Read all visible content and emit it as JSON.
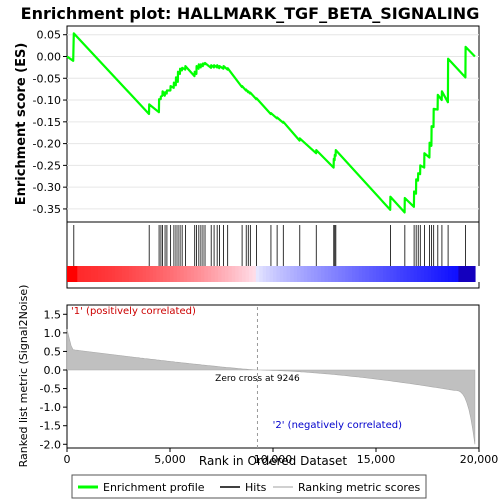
{
  "chart_data": {
    "type": "line",
    "title": "Enrichment plot: HALLMARK_TGF_BETA_SIGNALING",
    "xlabel": "Rank in Ordered Dataset",
    "es_ylabel": "Enrichment score (ES)",
    "metric_ylabel": "Ranked list metric (Signal2Noise)",
    "xlim": [
      0,
      20000
    ],
    "es_ylim": [
      -0.38,
      0.07
    ],
    "metric_ylim": [
      -2.1,
      1.75
    ],
    "x_ticks": [
      0,
      5000,
      10000,
      15000,
      20000
    ],
    "x_tick_labels": [
      "0",
      "5,000",
      "10,000",
      "15,000",
      "20,000"
    ],
    "es_ticks": [
      0.05,
      0.0,
      -0.05,
      -0.1,
      -0.15,
      -0.2,
      -0.25,
      -0.3,
      -0.35
    ],
    "es_tick_labels": [
      "0.05",
      "0.00",
      "-0.05",
      "-0.10",
      "-0.15",
      "-0.20",
      "-0.25",
      "-0.30",
      "-0.35"
    ],
    "metric_ticks": [
      1.5,
      1.0,
      0.5,
      0.0,
      -0.5,
      -1.0,
      -1.5,
      -2.0
    ],
    "metric_tick_labels": [
      "1.5",
      "1.0",
      "0.5",
      "0.0",
      "-0.5",
      "-1.0",
      "-1.5",
      "-2.0"
    ],
    "zero_cross": 9246,
    "zero_cross_label": "Zero cross at 9246",
    "pos_label": "'1' (positively correlated)",
    "neg_label": "'2' (negatively correlated)",
    "legend": [
      "Enrichment profile",
      "Hits",
      "Ranking metric scores"
    ],
    "colors": {
      "es_line": "#00ff00",
      "hits": "#000000",
      "metric": "#c0c0c0",
      "zero_line": "#999999",
      "pos_label": "#cc0000",
      "neg_label": "#0000cc"
    },
    "hits": [
      330,
      3990,
      4470,
      4560,
      4640,
      4760,
      4850,
      5030,
      5190,
      5290,
      5390,
      5490,
      5590,
      5750,
      6200,
      6290,
      6400,
      6500,
      6600,
      6700,
      7000,
      7140,
      7290,
      7400,
      7600,
      7800,
      8500,
      8700,
      8800,
      8900,
      9200,
      9900,
      10200,
      10500,
      11300,
      12100,
      12950,
      13000,
      13050,
      15700,
      16400,
      16850,
      16950,
      17050,
      17150,
      17350,
      17600,
      17700,
      17800,
      18000,
      18200,
      18500,
      19350
    ],
    "es_points": [
      [
        0,
        0.0
      ],
      [
        300,
        -0.01
      ],
      [
        330,
        0.053
      ],
      [
        3980,
        -0.132
      ],
      [
        3990,
        -0.11
      ],
      [
        4460,
        -0.128
      ],
      [
        4470,
        -0.098
      ],
      [
        4550,
        -0.098
      ],
      [
        4560,
        -0.092
      ],
      [
        4630,
        -0.09
      ],
      [
        4640,
        -0.08
      ],
      [
        4750,
        -0.09
      ],
      [
        4760,
        -0.082
      ],
      [
        4840,
        -0.085
      ],
      [
        4850,
        -0.078
      ],
      [
        5020,
        -0.078
      ],
      [
        5030,
        -0.068
      ],
      [
        5180,
        -0.072
      ],
      [
        5190,
        -0.06
      ],
      [
        5280,
        -0.066
      ],
      [
        5290,
        -0.048
      ],
      [
        5380,
        -0.058
      ],
      [
        5390,
        -0.035
      ],
      [
        5480,
        -0.04
      ],
      [
        5490,
        -0.028
      ],
      [
        5580,
        -0.032
      ],
      [
        5590,
        -0.026
      ],
      [
        5740,
        -0.03
      ],
      [
        5750,
        -0.022
      ],
      [
        6190,
        -0.045
      ],
      [
        6200,
        -0.035
      ],
      [
        6280,
        -0.04
      ],
      [
        6290,
        -0.022
      ],
      [
        6390,
        -0.028
      ],
      [
        6400,
        -0.018
      ],
      [
        6490,
        -0.025
      ],
      [
        6500,
        -0.018
      ],
      [
        6590,
        -0.022
      ],
      [
        6600,
        -0.016
      ],
      [
        6690,
        -0.018
      ],
      [
        6700,
        -0.015
      ],
      [
        6990,
        -0.026
      ],
      [
        7000,
        -0.02
      ],
      [
        7130,
        -0.025
      ],
      [
        7140,
        -0.02
      ],
      [
        7280,
        -0.025
      ],
      [
        7290,
        -0.02
      ],
      [
        7390,
        -0.027
      ],
      [
        7400,
        -0.022
      ],
      [
        7590,
        -0.028
      ],
      [
        7600,
        -0.022
      ],
      [
        7790,
        -0.03
      ],
      [
        7800,
        -0.027
      ],
      [
        8490,
        -0.07
      ],
      [
        8500,
        -0.068
      ],
      [
        8690,
        -0.078
      ],
      [
        8700,
        -0.076
      ],
      [
        8790,
        -0.082
      ],
      [
        8800,
        -0.08
      ],
      [
        8890,
        -0.085
      ],
      [
        8900,
        -0.083
      ],
      [
        9190,
        -0.098
      ],
      [
        9200,
        -0.096
      ],
      [
        9890,
        -0.132
      ],
      [
        9900,
        -0.13
      ],
      [
        10190,
        -0.142
      ],
      [
        10200,
        -0.14
      ],
      [
        10490,
        -0.152
      ],
      [
        10500,
        -0.15
      ],
      [
        11290,
        -0.193
      ],
      [
        11300,
        -0.188
      ],
      [
        12090,
        -0.222
      ],
      [
        12100,
        -0.215
      ],
      [
        12940,
        -0.255
      ],
      [
        12950,
        -0.235
      ],
      [
        12990,
        -0.238
      ],
      [
        13000,
        -0.226
      ],
      [
        13040,
        -0.228
      ],
      [
        13050,
        -0.215
      ],
      [
        15690,
        -0.352
      ],
      [
        15700,
        -0.322
      ],
      [
        16390,
        -0.358
      ],
      [
        16400,
        -0.325
      ],
      [
        16840,
        -0.345
      ],
      [
        16850,
        -0.31
      ],
      [
        16940,
        -0.315
      ],
      [
        16950,
        -0.282
      ],
      [
        17040,
        -0.285
      ],
      [
        17050,
        -0.268
      ],
      [
        17140,
        -0.27
      ],
      [
        17150,
        -0.25
      ],
      [
        17340,
        -0.255
      ],
      [
        17350,
        -0.222
      ],
      [
        17590,
        -0.232
      ],
      [
        17600,
        -0.198
      ],
      [
        17690,
        -0.205
      ],
      [
        17700,
        -0.16
      ],
      [
        17790,
        -0.162
      ],
      [
        17800,
        -0.12
      ],
      [
        17990,
        -0.122
      ],
      [
        18000,
        -0.088
      ],
      [
        18190,
        -0.1
      ],
      [
        18200,
        -0.08
      ],
      [
        18490,
        -0.105
      ],
      [
        18500,
        -0.005
      ],
      [
        19340,
        -0.048
      ],
      [
        19350,
        0.022
      ],
      [
        19800,
        0.0
      ]
    ]
  }
}
